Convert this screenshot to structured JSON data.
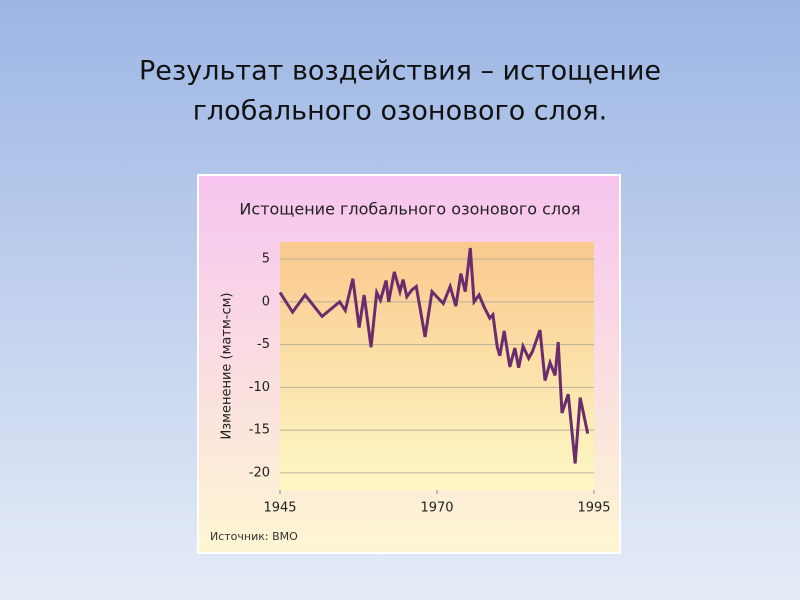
{
  "slide_title": [
    "Результат воздействия – истощение",
    "глобального озонового слоя."
  ],
  "chart_data": {
    "type": "line",
    "title": "Истощение глобального озонового слоя",
    "y_label": "Изменение (матм-см)",
    "source": "Источник: ВМО",
    "x": [
      1945,
      1947,
      1949,
      1951.7,
      1954.5,
      1955.4,
      1956.6,
      1957.6,
      1958.4,
      1959.5,
      1960.4,
      1961,
      1961.9,
      1962.3,
      1963.2,
      1964.1,
      1964.6,
      1965.2,
      1966,
      1966.7,
      1968.1,
      1969.2,
      1971,
      1972.1,
      1973,
      1973.8,
      1974.5,
      1975.3,
      1975.9,
      1976.7,
      1977.5,
      1978.4,
      1978.9,
      1979.6,
      1980,
      1980.7,
      1981.6,
      1982.4,
      1983,
      1983.7,
      1984.6,
      1985.2,
      1986.4,
      1987.2,
      1988,
      1988.8,
      1989.3,
      1989.9,
      1990.9,
      1992,
      1992.8,
      1994
    ],
    "series": [
      {
        "name": "Изменение",
        "color": "#6b2c6e",
        "values": [
          1.1,
          -1.2,
          0.8,
          -1.7,
          0,
          -1,
          2.7,
          -3,
          0.8,
          -5.3,
          1.1,
          0.2,
          2.5,
          0,
          3.5,
          1.2,
          2.6,
          0.6,
          1.4,
          1.8,
          -4.1,
          1.2,
          -0.2,
          1.8,
          -0.5,
          3.3,
          1.2,
          6.3,
          0,
          0.8,
          -0.6,
          -1.9,
          -1.5,
          -5.3,
          -6.3,
          -3.4,
          -7.6,
          -5.4,
          -7.7,
          -5.2,
          -6.6,
          -5.8,
          -3.3,
          -9.2,
          -7.1,
          -8.6,
          -4.7,
          -13,
          -10.8,
          -18.9,
          -11.2,
          -15.4
        ]
      }
    ],
    "xlim": [
      1945,
      1995
    ],
    "xticks": [
      1945,
      1970,
      1995
    ],
    "ylim": [
      -22,
      7
    ],
    "yticks": [
      5,
      0,
      -5,
      -10,
      -15,
      -20
    ],
    "grid": true
  }
}
